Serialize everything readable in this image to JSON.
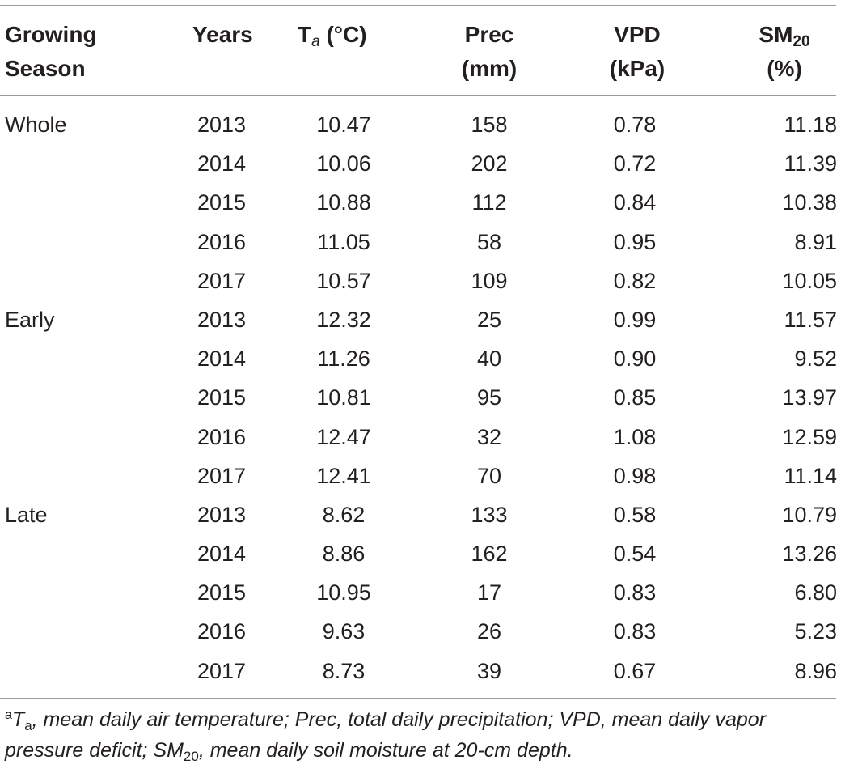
{
  "header": {
    "growing_season_l1": "Growing",
    "growing_season_l2": "Season",
    "years": "Years",
    "ta_main": "T",
    "ta_sub": "a",
    "ta_unit": " (°C)",
    "prec": "Prec",
    "prec_unit": "(mm)",
    "vpd": "VPD",
    "vpd_unit": "(kPa)",
    "sm_main": "SM",
    "sm_sub": "20",
    "sm_unit": "(%)"
  },
  "rows": [
    {
      "season": "Whole",
      "year": "2013",
      "ta": "10.47",
      "prec": "158",
      "vpd": "0.78",
      "sm": "11.18"
    },
    {
      "season": "",
      "year": "2014",
      "ta": "10.06",
      "prec": "202",
      "vpd": "0.72",
      "sm": "11.39"
    },
    {
      "season": "",
      "year": "2015",
      "ta": "10.88",
      "prec": "112",
      "vpd": "0.84",
      "sm": "10.38"
    },
    {
      "season": "",
      "year": "2016",
      "ta": "11.05",
      "prec": "58",
      "vpd": "0.95",
      "sm": "8.91"
    },
    {
      "season": "",
      "year": "2017",
      "ta": "10.57",
      "prec": "109",
      "vpd": "0.82",
      "sm": "10.05"
    },
    {
      "season": "Early",
      "year": "2013",
      "ta": "12.32",
      "prec": "25",
      "vpd": "0.99",
      "sm": "11.57"
    },
    {
      "season": "",
      "year": "2014",
      "ta": "11.26",
      "prec": "40",
      "vpd": "0.90",
      "sm": "9.52"
    },
    {
      "season": "",
      "year": "2015",
      "ta": "10.81",
      "prec": "95",
      "vpd": "0.85",
      "sm": "13.97"
    },
    {
      "season": "",
      "year": "2016",
      "ta": "12.47",
      "prec": "32",
      "vpd": "1.08",
      "sm": "12.59"
    },
    {
      "season": "",
      "year": "2017",
      "ta": "12.41",
      "prec": "70",
      "vpd": "0.98",
      "sm": "11.14"
    },
    {
      "season": "Late",
      "year": "2013",
      "ta": "8.62",
      "prec": "133",
      "vpd": "0.58",
      "sm": "10.79"
    },
    {
      "season": "",
      "year": "2014",
      "ta": "8.86",
      "prec": "162",
      "vpd": "0.54",
      "sm": "13.26"
    },
    {
      "season": "",
      "year": "2015",
      "ta": "10.95",
      "prec": "17",
      "vpd": "0.83",
      "sm": "6.80"
    },
    {
      "season": "",
      "year": "2016",
      "ta": "9.63",
      "prec": "26",
      "vpd": "0.83",
      "sm": "5.23"
    },
    {
      "season": "",
      "year": "2017",
      "ta": "8.73",
      "prec": "39",
      "vpd": "0.67",
      "sm": "8.96"
    }
  ],
  "footnote": {
    "marker": "a",
    "ta_main": "T",
    "ta_sub": "a",
    "part1": ", mean daily air temperature; Prec, total daily precipitation; VPD, mean daily vapor pressure deficit; SM",
    "sm_sub": "20",
    "part2": ", mean daily soil moisture at 20-cm depth."
  }
}
